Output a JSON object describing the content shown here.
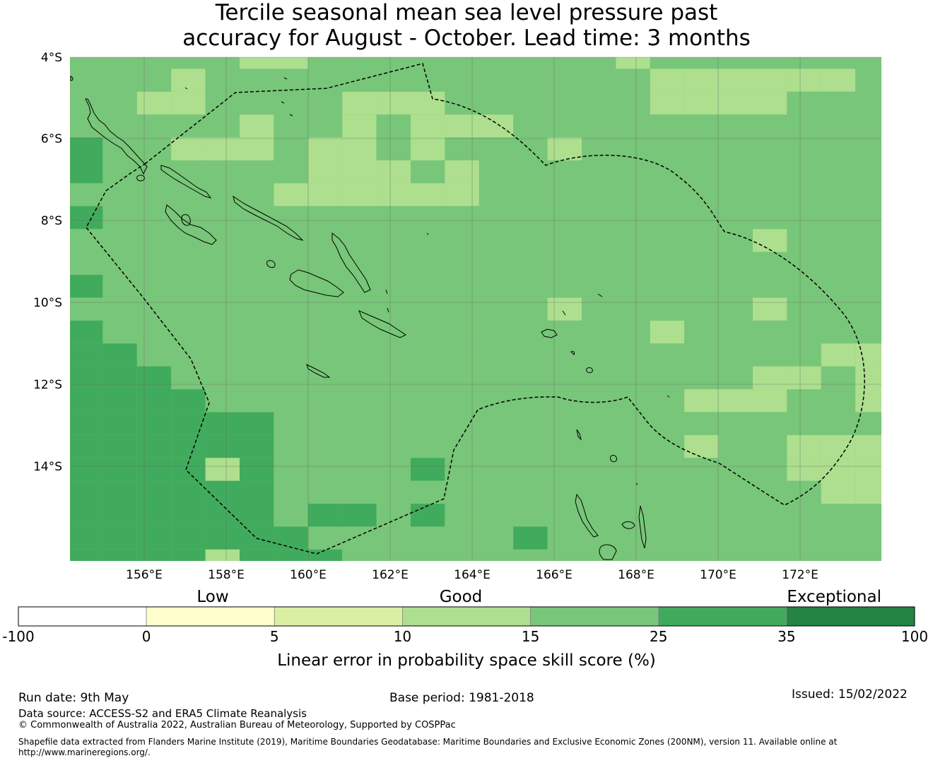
{
  "title": {
    "line1": "Tercile seasonal mean sea level pressure past",
    "line2": "accuracy for August - October. Lead time: 3 months"
  },
  "map": {
    "lon_labels": [
      "156°E",
      "158°E",
      "160°E",
      "162°E",
      "164°E",
      "166°E",
      "168°E",
      "170°E",
      "172°E"
    ],
    "lat_labels": [
      "4°S",
      "6°S",
      "8°S",
      "10°S",
      "12°S",
      "14°S"
    ],
    "colors": {
      "cat_10_15": "#addf8e",
      "cat_15_25": "#78c679",
      "cat_25_35": "#41ab5d",
      "coastline": "#000000",
      "eez_boundary": "#000000",
      "gridline": "#666666"
    },
    "skill_grid_legend": {
      "L": "10–15 (light green)",
      "M": "15–25 (green)",
      "D": "25–35 (dark green)"
    },
    "skill_grid": [
      "MMMMMLLMMMMMMMMMLMMMMMMM",
      "MMMLMMMMMMMMMMMMMLLLLLLM",
      "MMLLMMMMLLLMMMMMMLLLLMMM",
      "MMMMMLMMLMLLLMMMMMMMMMMM",
      "DMMLLLMLLMLMMMLMMMMMMMMM",
      "DMMMMMMLLLMLMMMMMMMMMMMM",
      "MMMMMMLLLLLLMMMMMMMMMMMM",
      "DMMMMMMMMMMMMMMMMMMMMMMM",
      "MMMMMMMMMMMMMMMMMMMMLMMM",
      "MMMMMMMMMMMMMMMMMMMMMMMM",
      "DMMMMMMMMMMMMMMMMMMMMMMM",
      "MMMMMMMMMMMMMMLMMMMMLMMM",
      "DMMMMMMMMMMMMMMMMLMMMMMM",
      "DDMMMMMMMMMMMMMMMMMMMMLL",
      "DDDMMMMMMMMMMMMMMMMMLLMLL",
      "DDDDMMMMMMMMMMMMMMLLLMML",
      "DDDDDDMMMMMMMMMMMMMMMMMM",
      "DDDDDDMMMMMMMMMMMMLMMLLL",
      "DDDDLDMMMMDMMMMMMMMMMLLL",
      "DDDDDDMMMMMMMMMMMMMMMMLL",
      "DDDDDDMDDMDMMMMMMMMMMMMM",
      "DDDDDDDMMMMMMDMMMMMMMMMM",
      "DDDDLDDDMMMMMMMMMMMMMMMM",
      "DDDLDDMMMMMMMMMMMMMMMMMM",
      "MDDDDDMMMMMMMMMMMMMMMMMM"
    ]
  },
  "legend": {
    "category_low": "Low",
    "category_good": "Good",
    "category_exceptional": "Exceptional",
    "bins": [
      {
        "from": -100,
        "to": 0,
        "color": "#ffffff"
      },
      {
        "from": 0,
        "to": 5,
        "color": "#ffffcc"
      },
      {
        "from": 5,
        "to": 10,
        "color": "#d9f0a3"
      },
      {
        "from": 10,
        "to": 15,
        "color": "#addf8e"
      },
      {
        "from": 15,
        "to": 25,
        "color": "#78c679"
      },
      {
        "from": 25,
        "to": 35,
        "color": "#41ab5d"
      },
      {
        "from": 35,
        "to": 100,
        "color": "#238443"
      }
    ],
    "tick_labels": [
      "-100",
      "0",
      "5",
      "10",
      "15",
      "25",
      "35",
      "100"
    ],
    "axis_label": "Linear error in probability space skill score (%)"
  },
  "footer": {
    "run_date": "Run date: 9th May",
    "base_period": "Base period: 1981-2018",
    "issued": "Issued: 15/02/2022",
    "data_source": "Data source: ACCESS-S2 and ERA5 Climate Reanalysis",
    "copyright": "© Commonwealth of Australia 2022, Australian Bureau of Meteorology, Supported by COSPPac",
    "shapefile_line1": "Shapefile data extracted from Flanders Marine Institute (2019), Maritime Boundaries Geodatabase: Maritime Boundaries and Exclusive Economic Zones (200NM), version 11. Available online at",
    "shapefile_line2": "http://www.marineregions.org/."
  }
}
